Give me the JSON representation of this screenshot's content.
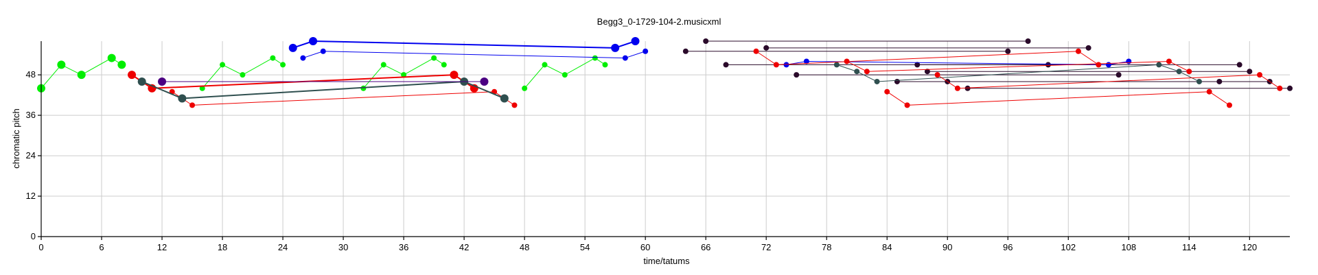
{
  "chart_data": {
    "type": "scatter",
    "title": "Begg3_0-1729-104-2.musicxml",
    "xlabel": "time/tatums",
    "ylabel": "chromatic pitch",
    "xlim": [
      0,
      124
    ],
    "ylim": [
      0,
      58
    ],
    "xticks": [
      0,
      6,
      12,
      18,
      24,
      30,
      36,
      42,
      48,
      54,
      60,
      66,
      72,
      78,
      84,
      90,
      96,
      102,
      108,
      114,
      120
    ],
    "yticks": [
      0,
      12,
      24,
      36,
      48
    ],
    "grid": true,
    "colors": {
      "green": "#00ee00",
      "blue": "#0000ee",
      "red": "#ee0000",
      "darkslate": "#2f4f4f",
      "purple": "#4b0082",
      "darkpurple": "#2a0a2a"
    },
    "series": [
      {
        "color": "#00ee00",
        "kind": "path",
        "marker": 6,
        "lw": 1,
        "points": [
          [
            0,
            44
          ],
          [
            2,
            51
          ],
          [
            4,
            48
          ],
          [
            7,
            53
          ],
          [
            8,
            51
          ]
        ]
      },
      {
        "color": "#00ee00",
        "kind": "path",
        "marker": 4,
        "lw": 1,
        "points": [
          [
            16,
            44
          ],
          [
            18,
            51
          ],
          [
            20,
            48
          ],
          [
            23,
            53
          ],
          [
            24,
            51
          ]
        ]
      },
      {
        "color": "#00ee00",
        "kind": "path",
        "marker": 4,
        "lw": 1,
        "points": [
          [
            32,
            44
          ],
          [
            34,
            51
          ],
          [
            36,
            48
          ],
          [
            39,
            53
          ],
          [
            40,
            51
          ]
        ]
      },
      {
        "color": "#00ee00",
        "kind": "path",
        "marker": 4,
        "lw": 1,
        "points": [
          [
            48,
            44
          ],
          [
            50,
            51
          ],
          [
            52,
            48
          ],
          [
            55,
            53
          ],
          [
            56,
            51
          ]
        ]
      },
      {
        "color": "#0000ee",
        "kind": "path",
        "marker": 6,
        "lw": 2,
        "points": [
          [
            25,
            56
          ],
          [
            27,
            58
          ],
          [
            57,
            56
          ],
          [
            59,
            58
          ]
        ]
      },
      {
        "color": "#0000ee",
        "kind": "path",
        "marker": 4,
        "lw": 1,
        "points": [
          [
            26,
            53
          ],
          [
            28,
            55
          ],
          [
            58,
            53
          ],
          [
            60,
            55
          ]
        ]
      },
      {
        "color": "#ee0000",
        "kind": "path",
        "marker": 6,
        "lw": 2,
        "points": [
          [
            9,
            48
          ],
          [
            11,
            44
          ],
          [
            41,
            48
          ],
          [
            43,
            44
          ]
        ]
      },
      {
        "color": "#ee0000",
        "kind": "path",
        "marker": 4,
        "lw": 1,
        "points": [
          [
            13,
            43
          ],
          [
            15,
            39
          ],
          [
            45,
            43
          ],
          [
            47,
            39
          ]
        ]
      },
      {
        "color": "#2f4f4f",
        "kind": "path",
        "marker": 6,
        "lw": 2,
        "points": [
          [
            10,
            46
          ],
          [
            14,
            41
          ],
          [
            42,
            46
          ],
          [
            46,
            41
          ]
        ]
      },
      {
        "color": "#4b0082",
        "kind": "path",
        "marker": 6,
        "lw": 1,
        "points": [
          [
            12,
            46
          ],
          [
            44,
            46
          ]
        ]
      },
      {
        "color": "#2a0a2a",
        "kind": "path",
        "marker": 4,
        "lw": 1,
        "points": [
          [
            66,
            58
          ],
          [
            98,
            58
          ]
        ]
      },
      {
        "color": "#2a0a2a",
        "kind": "path",
        "marker": 4,
        "lw": 1,
        "points": [
          [
            72,
            56
          ],
          [
            104,
            56
          ]
        ]
      },
      {
        "color": "#2a0a2a",
        "kind": "path",
        "marker": 4,
        "lw": 1,
        "points": [
          [
            64,
            55
          ],
          [
            96,
            55
          ]
        ]
      },
      {
        "color": "#2a0a2a",
        "kind": "path",
        "marker": 4,
        "lw": 1,
        "points": [
          [
            68,
            51
          ],
          [
            100,
            51
          ]
        ]
      },
      {
        "color": "#2a0a2a",
        "kind": "path",
        "marker": 4,
        "lw": 1,
        "points": [
          [
            75,
            48
          ],
          [
            107,
            48
          ]
        ]
      },
      {
        "color": "#2a0a2a",
        "kind": "path",
        "marker": 4,
        "lw": 1,
        "points": [
          [
            87,
            51
          ],
          [
            119,
            51
          ]
        ]
      },
      {
        "color": "#2a0a2a",
        "kind": "path",
        "marker": 4,
        "lw": 1,
        "points": [
          [
            88,
            49
          ],
          [
            120,
            49
          ]
        ]
      },
      {
        "color": "#2a0a2a",
        "kind": "path",
        "marker": 4,
        "lw": 1,
        "points": [
          [
            85,
            46
          ],
          [
            117,
            46
          ]
        ]
      },
      {
        "color": "#2a0a2a",
        "kind": "path",
        "marker": 4,
        "lw": 1,
        "points": [
          [
            90,
            46
          ],
          [
            122,
            46
          ]
        ]
      },
      {
        "color": "#2a0a2a",
        "kind": "path",
        "marker": 4,
        "lw": 1,
        "points": [
          [
            92,
            44
          ],
          [
            124,
            44
          ]
        ]
      },
      {
        "color": "#2f4f4f",
        "kind": "path",
        "marker": 4,
        "lw": 1,
        "points": [
          [
            79,
            51
          ],
          [
            81,
            49
          ],
          [
            83,
            46
          ],
          [
            111,
            51
          ],
          [
            113,
            49
          ],
          [
            115,
            46
          ]
        ]
      },
      {
        "color": "#0000ee",
        "kind": "path",
        "marker": 4,
        "lw": 1,
        "points": [
          [
            74,
            51
          ],
          [
            76,
            52
          ],
          [
            106,
            51
          ],
          [
            108,
            52
          ]
        ]
      },
      {
        "color": "#ee0000",
        "kind": "path",
        "marker": 4,
        "lw": 1,
        "points": [
          [
            71,
            55
          ],
          [
            73,
            51
          ],
          [
            103,
            55
          ],
          [
            105,
            51
          ]
        ]
      },
      {
        "color": "#ee0000",
        "kind": "path",
        "marker": 4,
        "lw": 1,
        "points": [
          [
            80,
            52
          ],
          [
            82,
            49
          ],
          [
            112,
            52
          ],
          [
            114,
            49
          ]
        ]
      },
      {
        "color": "#ee0000",
        "kind": "path",
        "marker": 4,
        "lw": 1,
        "points": [
          [
            84,
            43
          ],
          [
            86,
            39
          ],
          [
            116,
            43
          ],
          [
            118,
            39
          ]
        ]
      },
      {
        "color": "#ee0000",
        "kind": "path",
        "marker": 4,
        "lw": 1,
        "points": [
          [
            89,
            48
          ],
          [
            91,
            44
          ],
          [
            121,
            48
          ],
          [
            123,
            44
          ]
        ]
      }
    ]
  }
}
